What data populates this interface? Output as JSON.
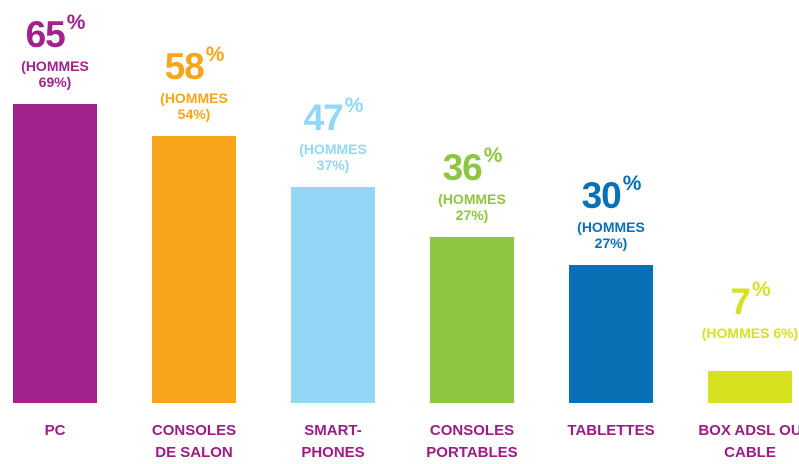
{
  "chart_data": {
    "type": "bar",
    "categories": [
      "PC",
      "CONSOLES DE SALON",
      "SMART-PHONES",
      "CONSOLES PORTABLES",
      "TABLETTES",
      "BOX ADSL OU CABLE"
    ],
    "values": [
      65,
      58,
      47,
      36,
      30,
      7
    ],
    "value_labels": [
      "65%",
      "58%",
      "47%",
      "36%",
      "30%",
      "7%"
    ],
    "annotations": [
      "(HOMMES 69%)",
      "(HOMMES 54%)",
      "(HOMMES 37%)",
      "(HOMMES 27%)",
      "(HOMMES 27%)",
      "(HOMMES 6%)"
    ],
    "colors": [
      "#a3218b",
      "#f9a51b",
      "#93d7f6",
      "#8dc641",
      "#0a70b5",
      "#d6e21f"
    ],
    "label_color": "#9c1c83",
    "ylim": [
      0,
      100
    ]
  }
}
